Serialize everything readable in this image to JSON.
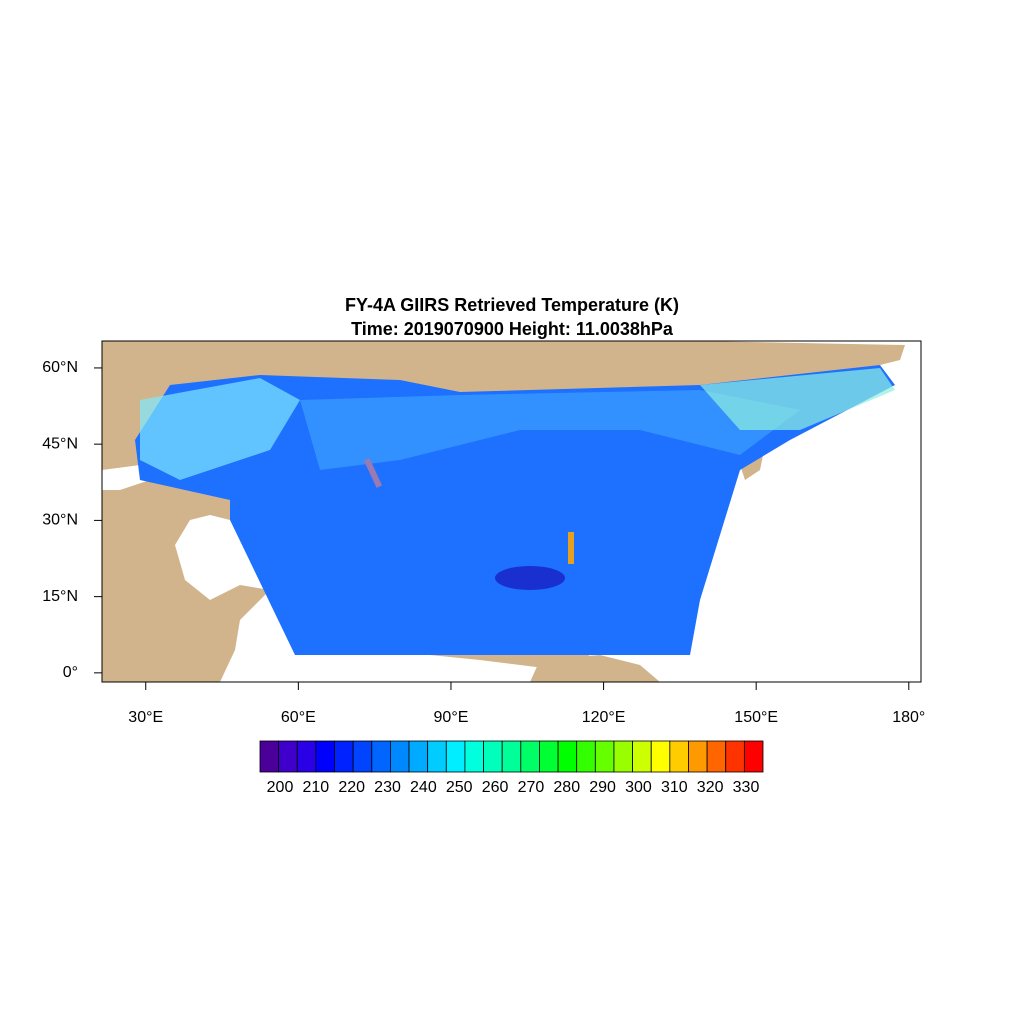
{
  "map": {
    "title": [
      "FY-4A GIIRS Retrieved Temperature (K)",
      "Time: 2019070900  Height: 11.0038hPa"
    ],
    "lon_range": [
      21.4,
      182.4
    ],
    "lat_range": [
      -1.8,
      65.3
    ],
    "lon_ticks": [
      {
        "value": 30,
        "label": "30°E"
      },
      {
        "value": 60,
        "label": "60°E"
      },
      {
        "value": 90,
        "label": "90°E"
      },
      {
        "value": 120,
        "label": "120°E"
      },
      {
        "value": 150,
        "label": "150°E"
      },
      {
        "value": 180,
        "label": "180°"
      }
    ],
    "lat_ticks": [
      {
        "value": 60,
        "label": "60°N"
      },
      {
        "value": 45,
        "label": "45°N"
      },
      {
        "value": 30,
        "label": "30°N"
      },
      {
        "value": 15,
        "label": "15°N"
      },
      {
        "value": 0,
        "label": "0°"
      }
    ],
    "colorbar": {
      "labels": [
        200,
        210,
        220,
        230,
        240,
        250,
        260,
        270,
        280,
        290,
        300,
        310,
        320,
        330
      ],
      "colors": [
        "#4b0099",
        "#3f00cc",
        "#2a00e6",
        "#0000ff",
        "#0022ff",
        "#0044ff",
        "#0066ff",
        "#0088ff",
        "#00aaff",
        "#00ccff",
        "#00eeff",
        "#00ffdd",
        "#00ffbb",
        "#00ff99",
        "#00ff66",
        "#00ff33",
        "#00ff00",
        "#33ff00",
        "#66ff00",
        "#99ff00",
        "#ccff00",
        "#ffff00",
        "#ffcc00",
        "#ff9900",
        "#ff6600",
        "#ff3300",
        "#ff0000"
      ]
    }
  }
}
